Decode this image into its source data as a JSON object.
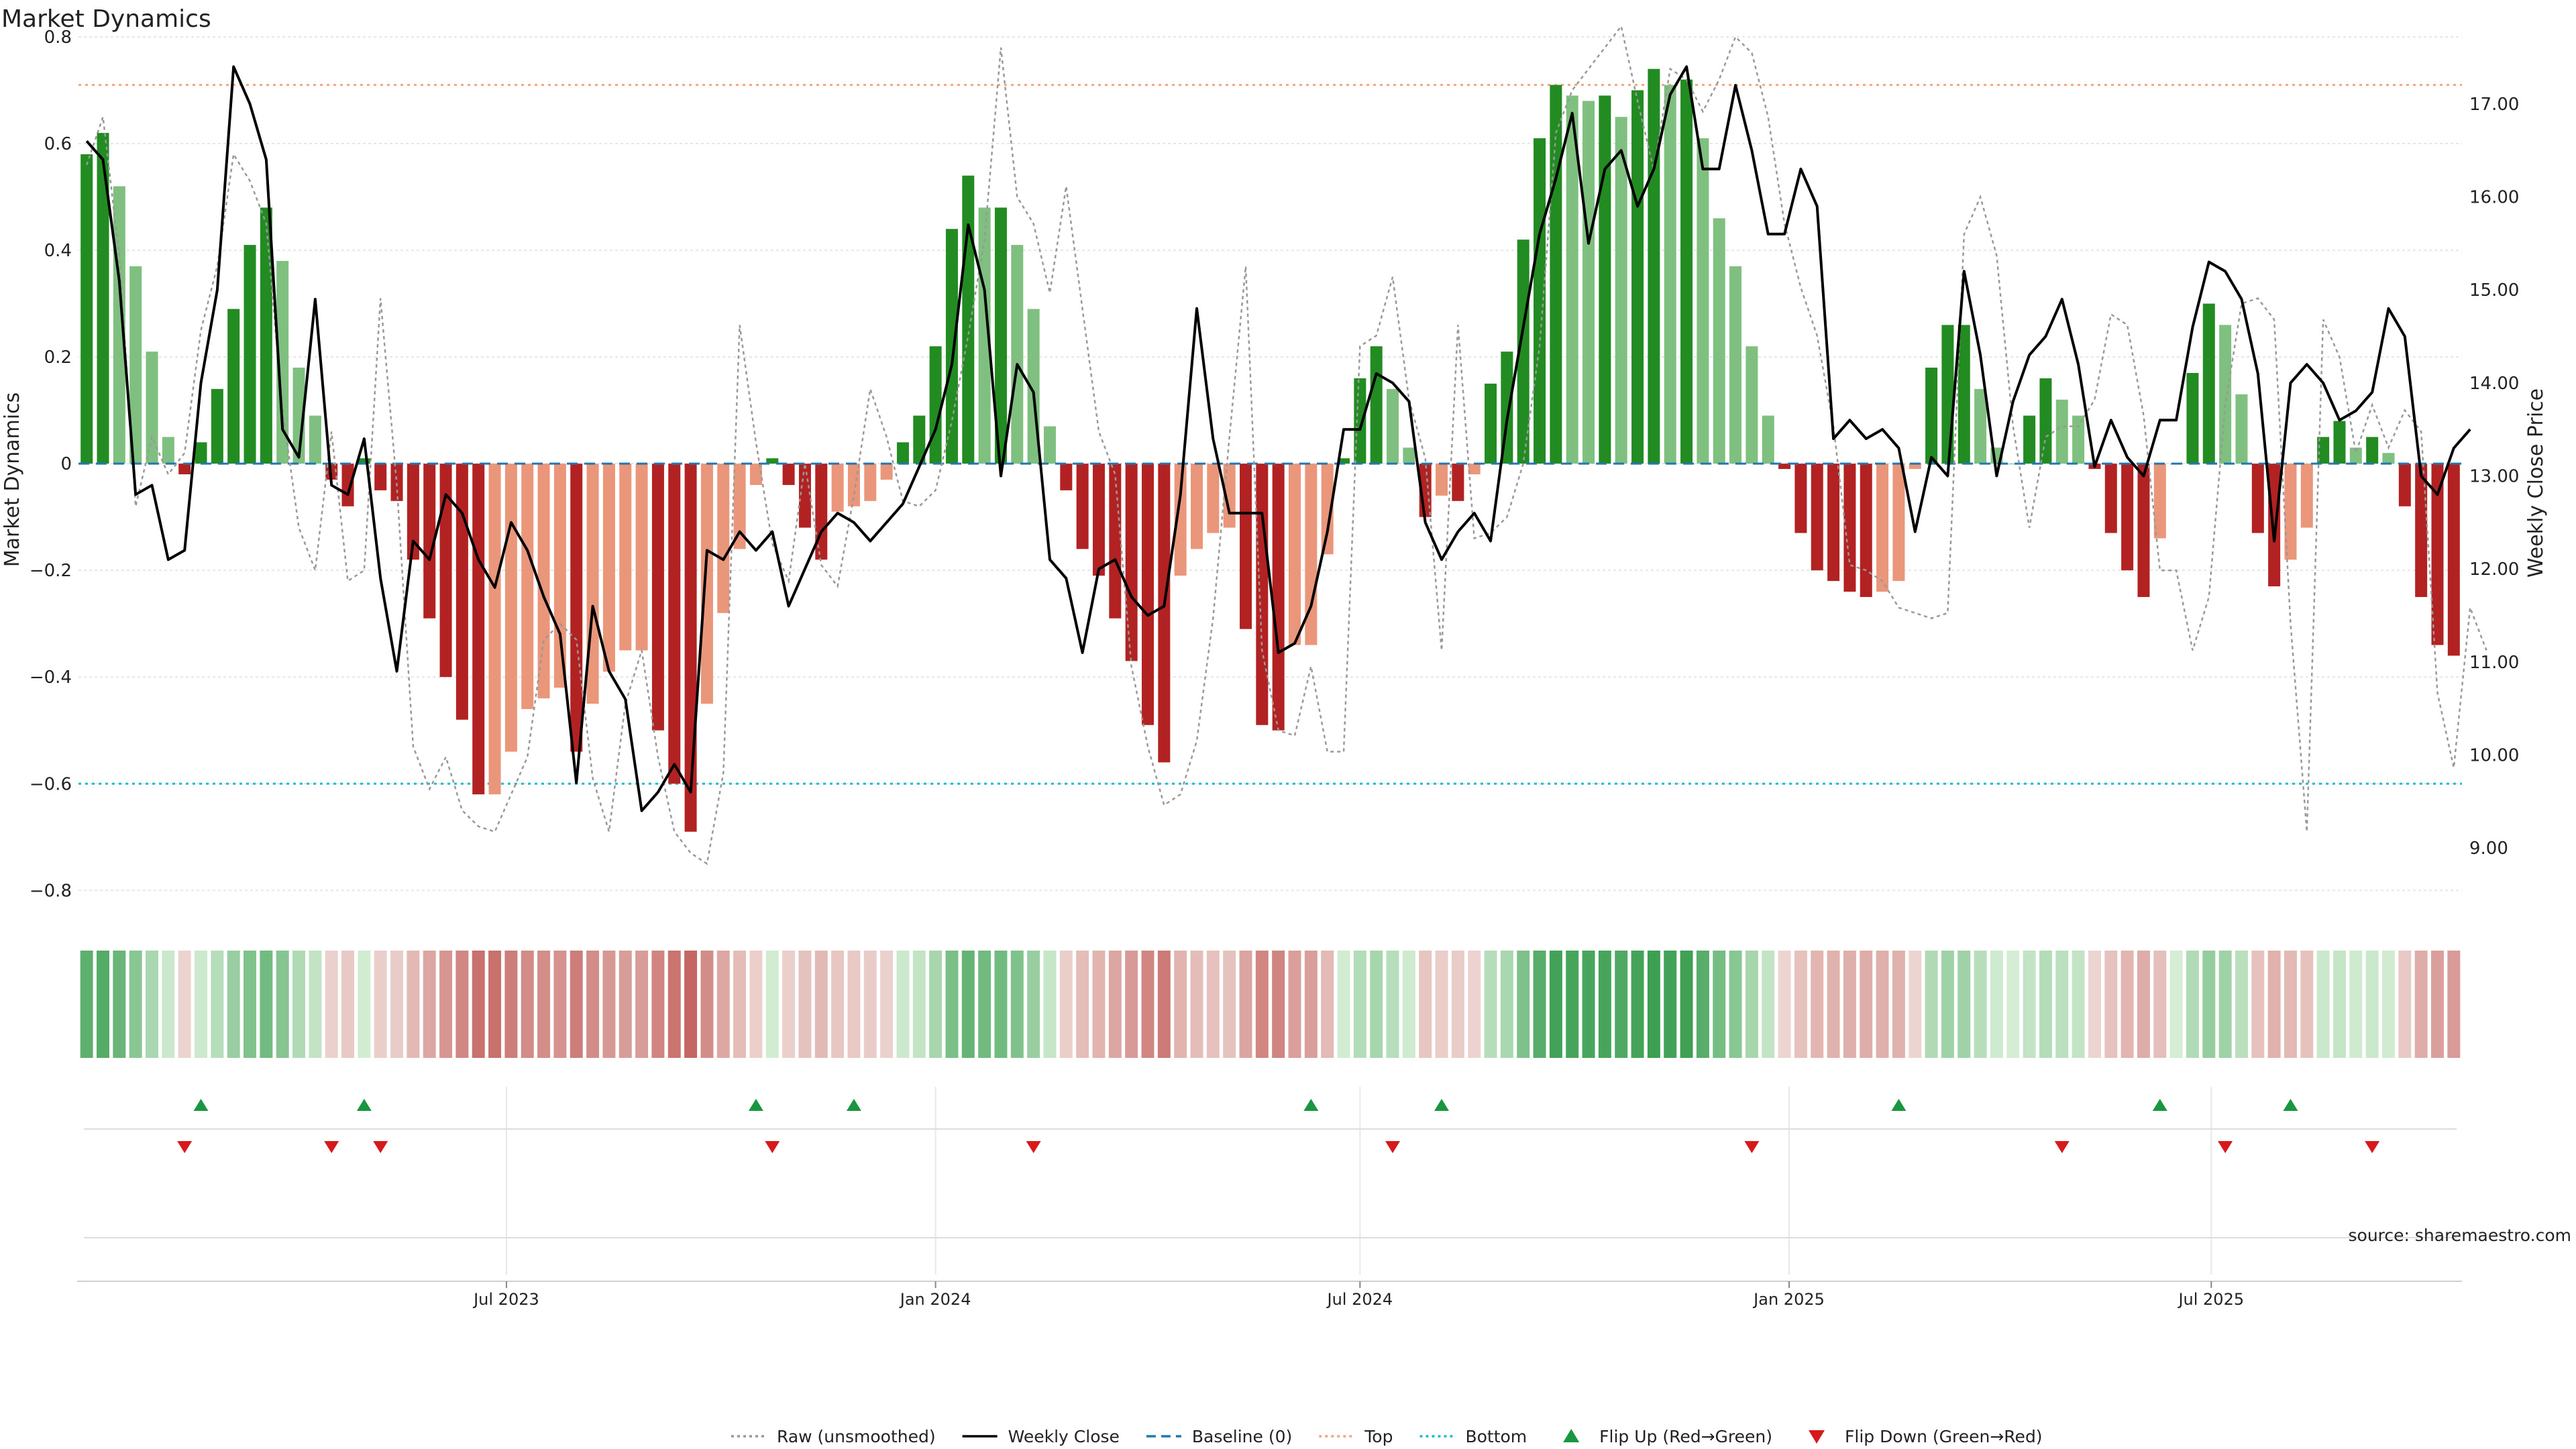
{
  "chart_data": {
    "type": "bar",
    "title": "Market Dynamics",
    "source": "source: sharemaestro.com",
    "left_axis": {
      "label": "Market Dynamics",
      "ylim": [
        -0.86,
        0.8
      ],
      "ticks": [
        0.8,
        0.6,
        0.4,
        0.2,
        0,
        -0.2,
        -0.4,
        -0.6,
        -0.8
      ],
      "tick_labels": [
        "0.8",
        "0.6",
        "0.4",
        "0.2",
        "0",
        "−0.2",
        "−0.4",
        "−0.6",
        "−0.8"
      ]
    },
    "right_axis": {
      "label": "Weekly Close Price",
      "ylim": [
        8.2,
        17.72
      ],
      "ticks": [
        9,
        10,
        11,
        12,
        13,
        14,
        15,
        16,
        17
      ],
      "tick_labels": [
        "9.00",
        "10.00",
        "11.00",
        "12.00",
        "13.00",
        "14.00",
        "15.00",
        "16.00",
        "17.00"
      ]
    },
    "x_axis": {
      "start_date": "2023-01-02",
      "step_days": 7,
      "count": 144,
      "ticks": [
        {
          "date": "2023-07-01",
          "label": "Jul 2023"
        },
        {
          "date": "2024-01-01",
          "label": "Jan 2024"
        },
        {
          "date": "2024-07-01",
          "label": "Jul 2024"
        },
        {
          "date": "2025-01-01",
          "label": "Jan 2025"
        },
        {
          "date": "2025-07-01",
          "label": "Jul 2025"
        }
      ]
    },
    "reference_lines": {
      "baseline": 0,
      "top": 0.71,
      "bottom": -0.6
    },
    "colors": {
      "strong_green": "#228b22",
      "weak_green": "#7fbf7f",
      "strong_red": "#b22222",
      "weak_red": "#e9967a",
      "close_line": "#000000",
      "raw_line": "#999999",
      "baseline": "#1f77b4",
      "top": "#f4a582",
      "bottom": "#17becf",
      "flip_up": "#1a9641",
      "flip_down": "#d7191c"
    },
    "series": [
      {
        "name": "Market Dynamics",
        "values": [
          0.58,
          0.62,
          0.52,
          0.37,
          0.21,
          0.05,
          -0.02,
          0.04,
          0.14,
          0.29,
          0.41,
          0.48,
          0.38,
          0.18,
          0.09,
          -0.03,
          -0.08,
          0.01,
          -0.05,
          -0.07,
          -0.18,
          -0.29,
          -0.4,
          -0.48,
          -0.62,
          -0.62,
          -0.54,
          -0.46,
          -0.44,
          -0.42,
          -0.54,
          -0.45,
          -0.39,
          -0.35,
          -0.35,
          -0.5,
          -0.6,
          -0.69,
          -0.45,
          -0.28,
          -0.16,
          -0.04,
          0.01,
          -0.04,
          -0.12,
          -0.18,
          -0.09,
          -0.08,
          -0.07,
          -0.03,
          0.04,
          0.09,
          0.22,
          0.44,
          0.54,
          0.48,
          0.48,
          0.41,
          0.29,
          0.07,
          -0.05,
          -0.16,
          -0.21,
          -0.29,
          -0.37,
          -0.49,
          -0.56,
          -0.21,
          -0.16,
          -0.13,
          -0.12,
          -0.31,
          -0.49,
          -0.5,
          -0.34,
          -0.34,
          -0.17,
          0.01,
          0.16,
          0.22,
          0.14,
          0.03,
          -0.1,
          -0.06,
          -0.07,
          -0.02,
          0.15,
          0.21,
          0.42,
          0.61,
          0.71,
          0.69,
          0.68,
          0.69,
          0.65,
          0.7,
          0.74,
          0.71,
          0.72,
          0.61,
          0.46,
          0.37,
          0.22,
          0.09,
          -0.01,
          -0.13,
          -0.2,
          -0.22,
          -0.24,
          -0.25,
          -0.24,
          -0.22,
          -0.01,
          0.18,
          0.26,
          0.26,
          0.14,
          0.03,
          0,
          0.09,
          0.16,
          0.12,
          0.09,
          -0.01,
          -0.13,
          -0.2,
          -0.25,
          -0.14,
          0,
          0.17,
          0.3,
          0.26,
          0.13,
          -0.13,
          -0.23,
          -0.18,
          -0.12,
          0.05,
          0.08,
          0.03,
          0.05,
          0.02,
          -0.08,
          -0.25,
          -0.34,
          -0.36
        ]
      },
      {
        "name": "Raw (unsmoothed)",
        "values": [
          0.56,
          0.65,
          0.39,
          -0.08,
          0.05,
          -0.02,
          0.02,
          0.25,
          0.37,
          0.58,
          0.53,
          0.45,
          0.1,
          -0.12,
          -0.2,
          0.06,
          -0.22,
          -0.2,
          0.31,
          -0.04,
          -0.53,
          -0.61,
          -0.55,
          -0.65,
          -0.68,
          -0.69,
          -0.62,
          -0.55,
          -0.33,
          -0.3,
          -0.33,
          -0.59,
          -0.69,
          -0.45,
          -0.35,
          -0.55,
          -0.69,
          -0.73,
          -0.75,
          -0.58,
          0.26,
          0.04,
          -0.15,
          -0.22,
          0.0,
          -0.19,
          -0.23,
          -0.06,
          0.14,
          0.05,
          -0.07,
          -0.08,
          -0.05,
          0.08,
          0.24,
          0.42,
          0.78,
          0.5,
          0.45,
          0.32,
          0.52,
          0.29,
          0.06,
          -0.02,
          -0.38,
          -0.53,
          -0.64,
          -0.62,
          -0.52,
          -0.29,
          0.05,
          0.37,
          -0.35,
          -0.5,
          -0.51,
          -0.38,
          -0.54,
          -0.54,
          0.22,
          0.24,
          0.35,
          0.12,
          0.01,
          -0.35,
          0.26,
          -0.14,
          -0.13,
          -0.1,
          0.0,
          0.22,
          0.62,
          0.7,
          0.74,
          0.78,
          0.82,
          0.68,
          0.55,
          0.74,
          0.72,
          0.66,
          0.72,
          0.8,
          0.77,
          0.65,
          0.45,
          0.33,
          0.24,
          0.07,
          -0.19,
          -0.2,
          -0.22,
          -0.27,
          -0.28,
          -0.29,
          -0.28,
          0.43,
          0.5,
          0.39,
          0.07,
          -0.12,
          0.05,
          0.07,
          0.07,
          0.12,
          0.28,
          0.26,
          0.09,
          -0.2,
          -0.2,
          -0.35,
          -0.25,
          0.11,
          0.3,
          0.31,
          0.27,
          -0.3,
          -0.69,
          0.27,
          0.2,
          0.02,
          0.11,
          0.03,
          0.1,
          0.06,
          -0.43,
          -0.57,
          -0.27,
          -0.35
        ]
      },
      {
        "name": "Weekly Close",
        "values": [
          16.6,
          16.4,
          15.1,
          12.8,
          12.9,
          12.1,
          12.2,
          14.0,
          15.0,
          17.4,
          17.0,
          16.4,
          13.5,
          13.2,
          14.9,
          12.9,
          12.8,
          13.4,
          11.9,
          10.9,
          12.3,
          12.1,
          12.8,
          12.6,
          12.1,
          11.8,
          12.5,
          12.2,
          11.7,
          11.3,
          9.7,
          11.6,
          10.9,
          10.6,
          9.4,
          9.6,
          9.9,
          9.6,
          12.2,
          12.1,
          12.4,
          12.2,
          12.4,
          11.6,
          12.0,
          12.4,
          12.6,
          12.5,
          12.3,
          12.5,
          12.7,
          13.1,
          13.5,
          14.2,
          15.7,
          15.0,
          13.0,
          14.2,
          13.9,
          12.1,
          11.9,
          11.1,
          12.0,
          12.1,
          11.7,
          11.5,
          11.6,
          12.8,
          14.8,
          13.4,
          12.6,
          12.6,
          12.6,
          11.1,
          11.2,
          11.6,
          12.4,
          13.5,
          13.5,
          14.1,
          14.0,
          13.8,
          12.5,
          12.1,
          12.4,
          12.6,
          12.3,
          13.6,
          14.6,
          15.6,
          16.2,
          16.9,
          15.5,
          16.3,
          16.5,
          15.9,
          16.3,
          17.1,
          17.4,
          16.3,
          16.3,
          17.2,
          16.5,
          15.6,
          15.6,
          16.3,
          15.9,
          13.4,
          13.6,
          13.4,
          13.5,
          13.3,
          12.4,
          13.2,
          13.0,
          15.2,
          14.3,
          13.0,
          13.8,
          14.3,
          14.5,
          14.9,
          14.2,
          13.1,
          13.6,
          13.2,
          13.0,
          13.6,
          13.6,
          14.6,
          15.3,
          15.2,
          14.9,
          14.1,
          12.3,
          14.0,
          14.2,
          14.0,
          13.6,
          13.7,
          13.9,
          14.8,
          14.5,
          13.0,
          12.8,
          13.3,
          13.5
        ]
      }
    ],
    "heat_strip": {
      "values": [
        0.58,
        0.62,
        0.52,
        0.37,
        0.21,
        0.05,
        -0.02,
        0.04,
        0.14,
        0.29,
        0.41,
        0.48,
        0.38,
        0.18,
        0.09,
        -0.03,
        -0.08,
        0.01,
        -0.05,
        -0.07,
        -0.18,
        -0.29,
        -0.4,
        -0.48,
        -0.62,
        -0.62,
        -0.54,
        -0.46,
        -0.44,
        -0.42,
        -0.54,
        -0.45,
        -0.39,
        -0.35,
        -0.35,
        -0.5,
        -0.6,
        -0.69,
        -0.45,
        -0.28,
        -0.16,
        -0.04,
        0.01,
        -0.04,
        -0.12,
        -0.18,
        -0.09,
        -0.08,
        -0.07,
        -0.03,
        0.04,
        0.09,
        0.22,
        0.44,
        0.54,
        0.48,
        0.48,
        0.41,
        0.29,
        0.07,
        -0.05,
        -0.16,
        -0.21,
        -0.29,
        -0.37,
        -0.49,
        -0.56,
        -0.21,
        -0.16,
        -0.13,
        -0.12,
        -0.31,
        -0.49,
        -0.5,
        -0.34,
        -0.34,
        -0.17,
        0.01,
        0.16,
        0.22,
        0.14,
        0.03,
        -0.1,
        -0.06,
        -0.07,
        -0.02,
        0.15,
        0.21,
        0.42,
        0.61,
        0.71,
        0.69,
        0.68,
        0.69,
        0.65,
        0.7,
        0.74,
        0.71,
        0.72,
        0.61,
        0.46,
        0.37,
        0.22,
        0.09,
        -0.01,
        -0.13,
        -0.2,
        -0.22,
        -0.24,
        -0.25,
        -0.24,
        -0.22,
        -0.01,
        0.18,
        0.26,
        0.26,
        0.14,
        0.03,
        0,
        0.09,
        0.16,
        0.12,
        0.09,
        -0.01,
        -0.13,
        -0.2,
        -0.25,
        -0.14,
        0,
        0.17,
        0.3,
        0.26,
        0.13,
        -0.13,
        -0.23,
        -0.18,
        -0.12,
        0.05,
        0.08,
        0.03,
        0.05,
        0.02,
        -0.08,
        -0.25,
        -0.34,
        -0.36
      ]
    },
    "flips": {
      "up": [
        7,
        17,
        41,
        47,
        75,
        83,
        111,
        127,
        135
      ],
      "down": [
        6,
        15,
        18,
        42,
        58,
        80,
        102,
        121,
        131,
        140
      ]
    },
    "legend": {
      "placement": "bottom-center",
      "items": [
        {
          "label": "Raw (unsmoothed)",
          "style": "dotted-line",
          "color": "#999999"
        },
        {
          "label": "Weekly Close",
          "style": "solid-line",
          "color": "#000000"
        },
        {
          "label": "Baseline (0)",
          "style": "dashed-line",
          "color": "#1f77b4"
        },
        {
          "label": "Top",
          "style": "dotted-line",
          "color": "#f4a582"
        },
        {
          "label": "Bottom",
          "style": "dotted-line",
          "color": "#17becf"
        },
        {
          "label": "Flip Up (Red→Green)",
          "style": "triangle-up",
          "color": "#1a9641"
        },
        {
          "label": "Flip Down (Green→Red)",
          "style": "triangle-down",
          "color": "#d7191c"
        }
      ]
    },
    "grid": true
  }
}
